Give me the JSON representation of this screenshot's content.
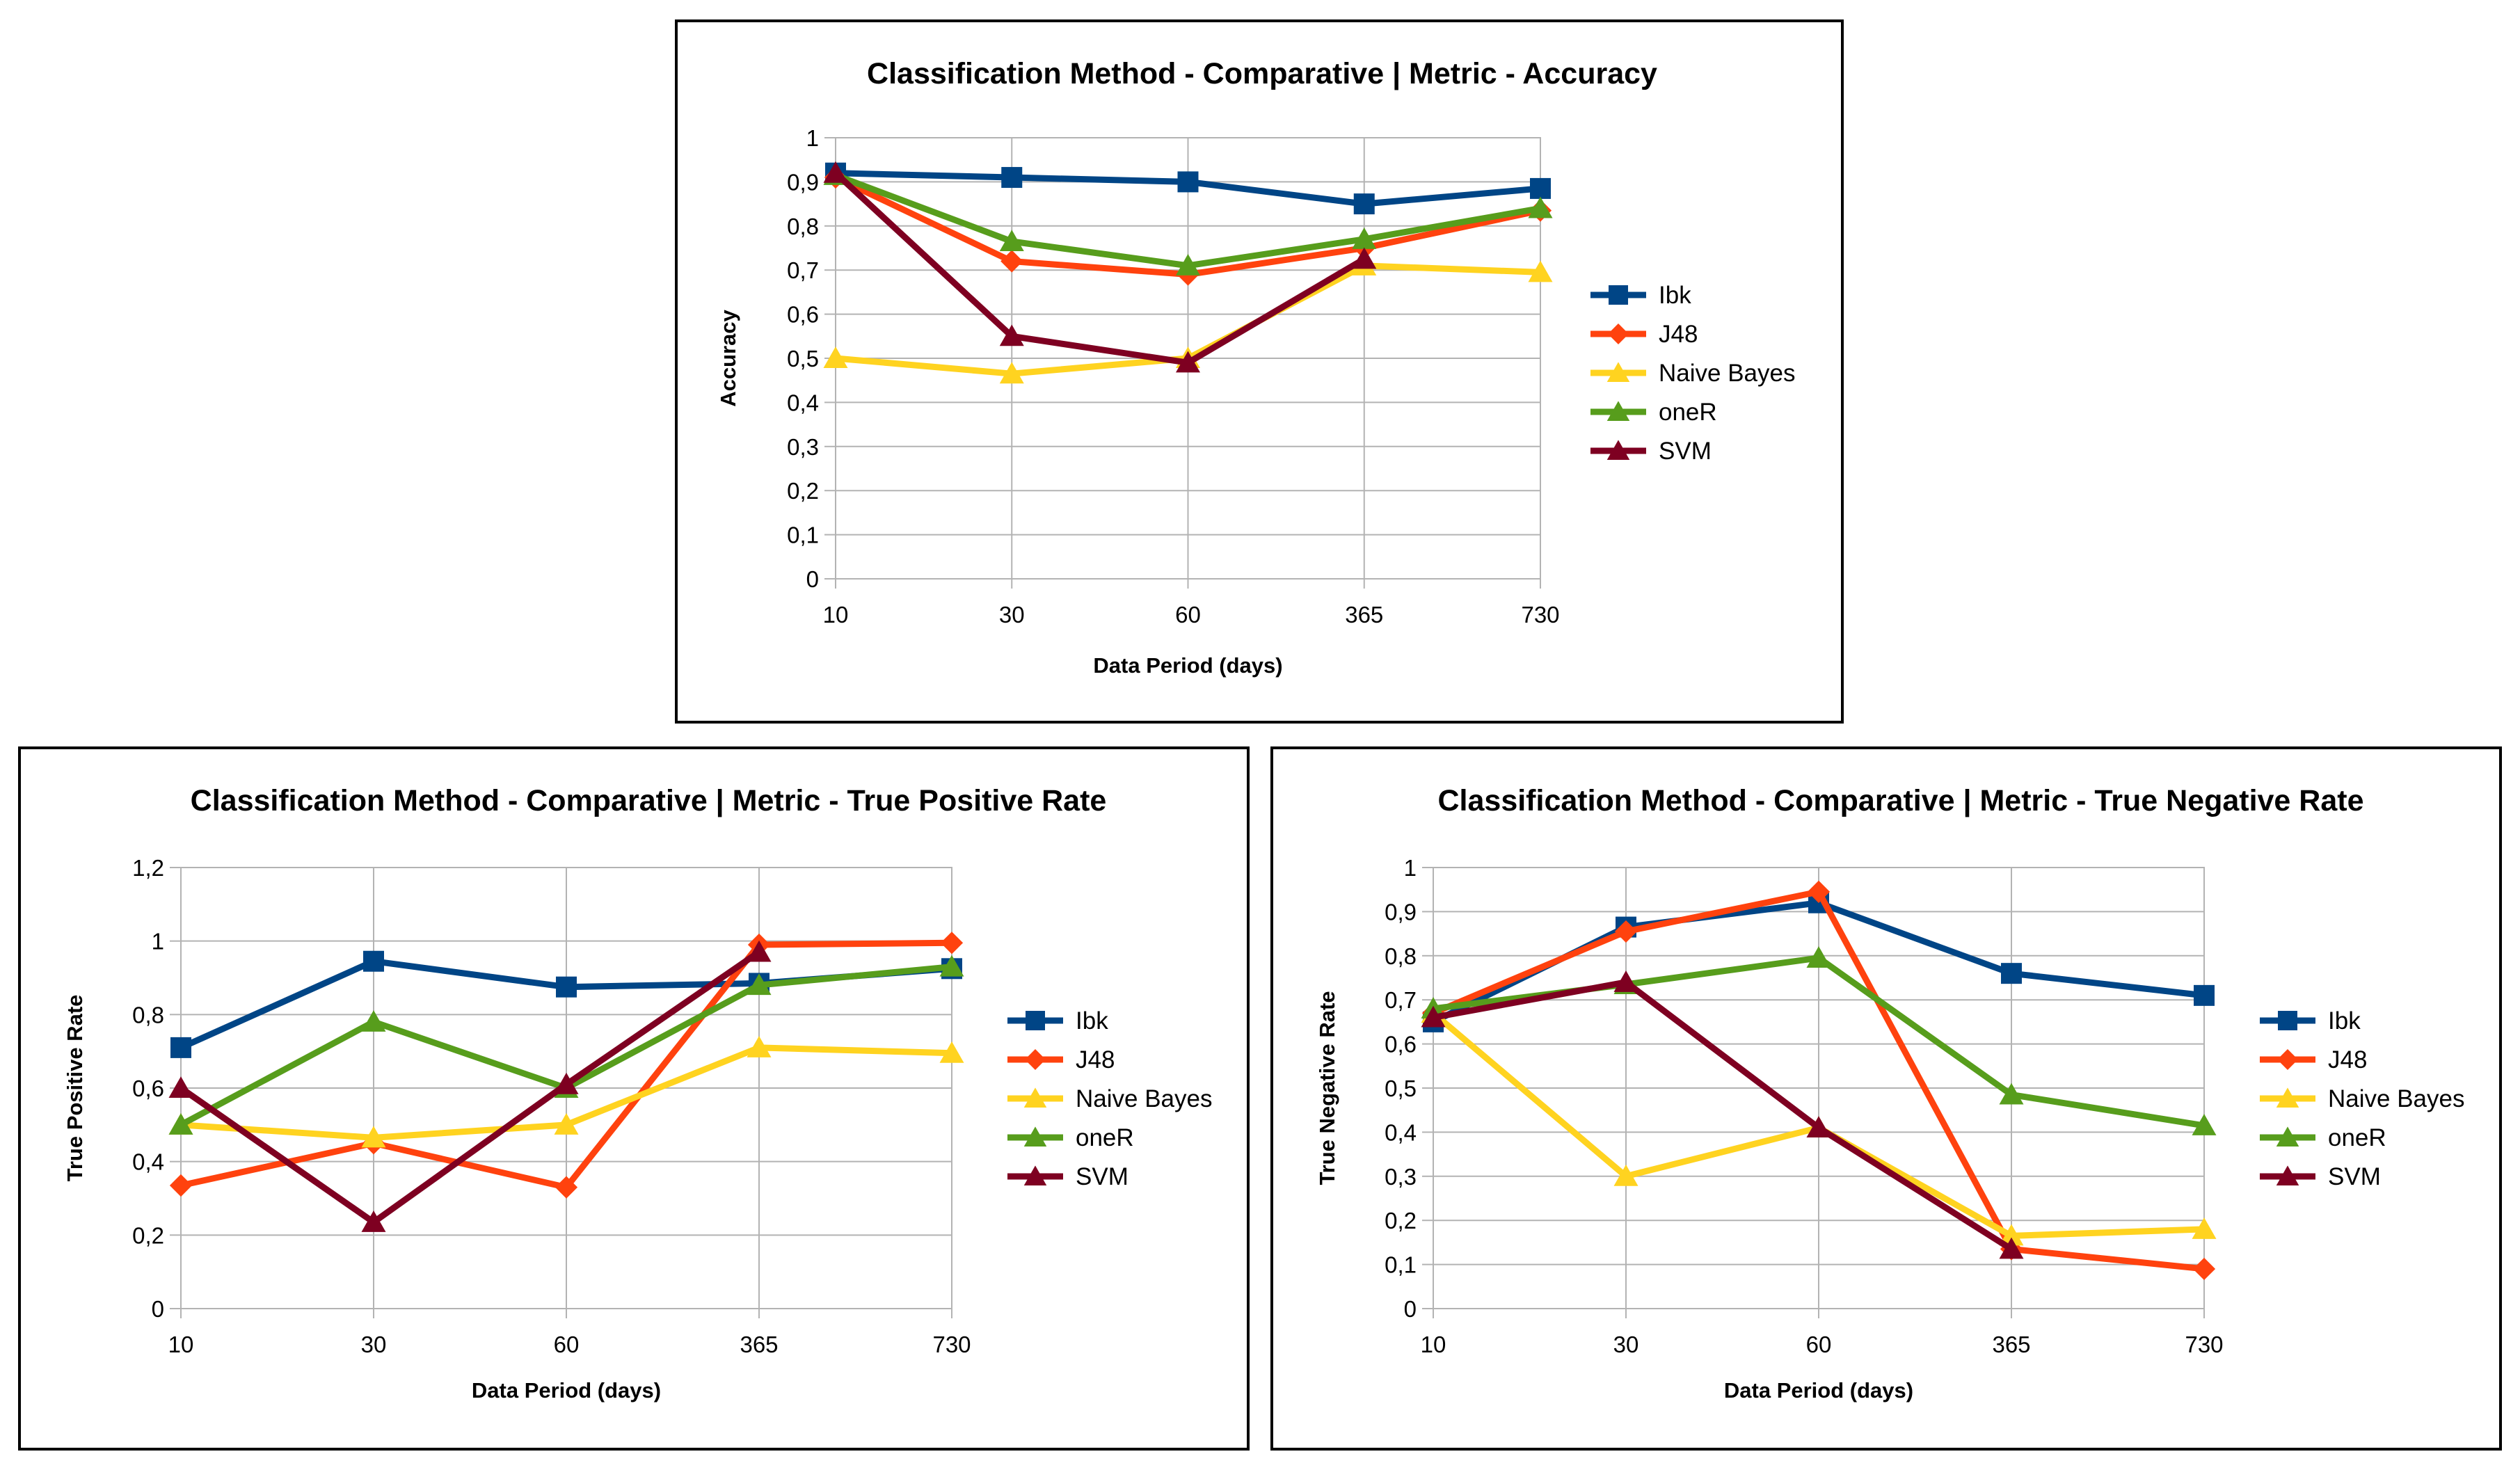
{
  "chart_data": [
    {
      "type": "line",
      "title": "Classification Method - Comparative | Metric - Accuracy",
      "xlabel": "Data Period (days)",
      "ylabel": "Accuracy",
      "categories": [
        "10",
        "30",
        "60",
        "365",
        "730"
      ],
      "yticks": [
        "0",
        "0,1",
        "0,2",
        "0,3",
        "0,4",
        "0,5",
        "0,6",
        "0,7",
        "0,8",
        "0,9",
        "1"
      ],
      "ylim": [
        0,
        1
      ],
      "grid": "horizontal",
      "legend": "right",
      "series": [
        {
          "name": "Ibk",
          "color": "#004586",
          "marker": "square",
          "values": [
            0.92,
            0.91,
            0.9,
            0.85,
            0.885
          ]
        },
        {
          "name": "J48",
          "color": "#ff420e",
          "marker": "diamond",
          "values": [
            0.91,
            0.72,
            0.69,
            0.75,
            0.835
          ]
        },
        {
          "name": "Naive Bayes",
          "color": "#ffd320",
          "marker": "triangle",
          "values": [
            0.5,
            0.465,
            0.5,
            0.71,
            0.695
          ]
        },
        {
          "name": "oneR",
          "color": "#579d1c",
          "marker": "triangle",
          "values": [
            0.915,
            0.765,
            0.71,
            0.77,
            0.84
          ]
        },
        {
          "name": "SVM",
          "color": "#7e0021",
          "marker": "triangle",
          "values": [
            0.92,
            0.55,
            0.49,
            0.725,
            null
          ]
        }
      ]
    },
    {
      "type": "line",
      "title": "Classification Method - Comparative | Metric - True Positive Rate",
      "xlabel": "Data Period (days)",
      "ylabel": "True Positive Rate",
      "categories": [
        "10",
        "30",
        "60",
        "365",
        "730"
      ],
      "yticks": [
        "0",
        "0,2",
        "0,4",
        "0,6",
        "0,8",
        "1",
        "1,2"
      ],
      "ylim": [
        0,
        1.2
      ],
      "grid": "horizontal",
      "legend": "right",
      "series": [
        {
          "name": "Ibk",
          "color": "#004586",
          "marker": "square",
          "values": [
            0.71,
            0.945,
            0.875,
            0.885,
            0.925
          ]
        },
        {
          "name": "J48",
          "color": "#ff420e",
          "marker": "diamond",
          "values": [
            0.335,
            0.45,
            0.33,
            0.99,
            0.995
          ]
        },
        {
          "name": "Naive Bayes",
          "color": "#ffd320",
          "marker": "triangle",
          "values": [
            0.5,
            0.465,
            0.5,
            0.71,
            0.695
          ]
        },
        {
          "name": "oneR",
          "color": "#579d1c",
          "marker": "triangle",
          "values": [
            0.5,
            0.78,
            0.6,
            0.88,
            0.93
          ]
        },
        {
          "name": "SVM",
          "color": "#7e0021",
          "marker": "triangle",
          "values": [
            0.6,
            0.235,
            0.61,
            0.97,
            null
          ]
        }
      ]
    },
    {
      "type": "line",
      "title": "Classification Method - Comparative | Metric - True Negative Rate",
      "xlabel": "Data Period (days)",
      "ylabel": "True Negative Rate",
      "categories": [
        "10",
        "30",
        "60",
        "365",
        "730"
      ],
      "yticks": [
        "0",
        "0,1",
        "0,2",
        "0,3",
        "0,4",
        "0,5",
        "0,6",
        "0,7",
        "0,8",
        "0,9",
        "1"
      ],
      "ylim": [
        0,
        1
      ],
      "grid": "horizontal",
      "legend": "right",
      "series": [
        {
          "name": "Ibk",
          "color": "#004586",
          "marker": "square",
          "values": [
            0.65,
            0.865,
            0.92,
            0.76,
            0.71
          ]
        },
        {
          "name": "J48",
          "color": "#ff420e",
          "marker": "diamond",
          "values": [
            0.67,
            0.855,
            0.945,
            0.135,
            0.09
          ]
        },
        {
          "name": "Naive Bayes",
          "color": "#ffd320",
          "marker": "triangle",
          "values": [
            0.67,
            0.3,
            0.41,
            0.165,
            0.18
          ]
        },
        {
          "name": "oneR",
          "color": "#579d1c",
          "marker": "triangle",
          "values": [
            0.68,
            0.735,
            0.795,
            0.485,
            0.415
          ]
        },
        {
          "name": "SVM",
          "color": "#7e0021",
          "marker": "triangle",
          "values": [
            0.66,
            0.74,
            0.41,
            0.135,
            null
          ]
        }
      ]
    }
  ]
}
